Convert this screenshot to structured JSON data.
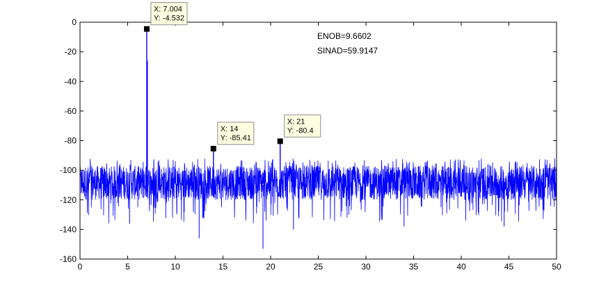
{
  "chart_data": {
    "type": "line",
    "title": "",
    "xlabel": "",
    "ylabel": "",
    "xlim": [
      0,
      50
    ],
    "ylim": [
      -160,
      0
    ],
    "xticks": [
      0,
      5,
      10,
      15,
      20,
      25,
      30,
      35,
      40,
      45,
      50
    ],
    "yticks": [
      0,
      -20,
      -40,
      -60,
      -80,
      -100,
      -120,
      -140,
      -160
    ],
    "grid": false,
    "series": [
      {
        "color": "#0000ff",
        "noise_floor_mean": -108,
        "noise_floor_range": [
          -120,
          -97
        ],
        "noise_min": -153,
        "peaks": [
          {
            "x": 7.004,
            "y": -4.532
          },
          {
            "x": 14,
            "y": -85.41
          },
          {
            "x": 21,
            "y": -80.4
          }
        ],
        "deep_dips": [
          {
            "x": 12.5,
            "y": -146
          },
          {
            "x": 19.2,
            "y": -153
          },
          {
            "x": 5.2,
            "y": -136
          },
          {
            "x": 22.4,
            "y": -140
          },
          {
            "x": 34.0,
            "y": -138
          },
          {
            "x": 44.5,
            "y": -138
          }
        ]
      }
    ],
    "data_tips": [
      {
        "x_label": "X: 7.004",
        "y_label": "Y: -4.532",
        "x": 7.004,
        "y": -4.532
      },
      {
        "x_label": "X: 14",
        "y_label": "Y: -85.41",
        "x": 14,
        "y": -85.41
      },
      {
        "x_label": "X: 21",
        "y_label": "Y: -80.4",
        "x": 21,
        "y": -80.4
      }
    ],
    "annotations": [
      {
        "text": "ENOB=9.6602"
      },
      {
        "text": "SINAD=59.9147"
      }
    ]
  }
}
